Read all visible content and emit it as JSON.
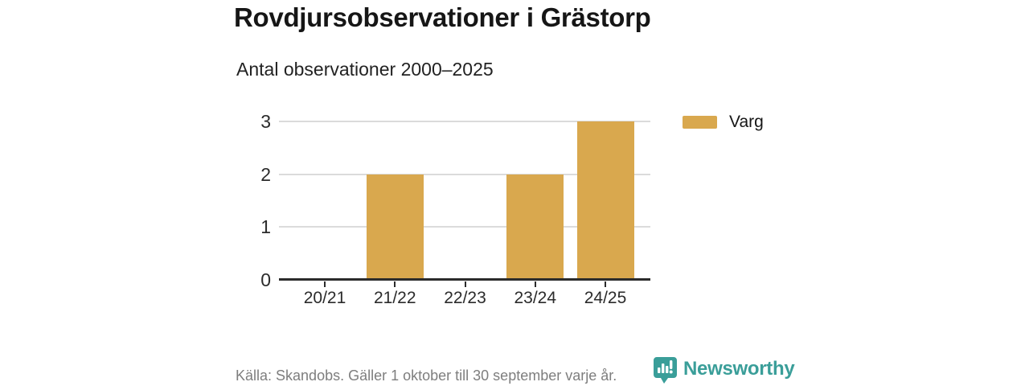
{
  "header": {
    "title": "Rovdjursobservationer i Grästorp",
    "subtitle": "Antal observationer 2000–2025"
  },
  "chart_data": {
    "type": "bar",
    "categories": [
      "20/21",
      "21/22",
      "22/23",
      "23/24",
      "24/25"
    ],
    "series": [
      {
        "name": "Varg",
        "values": [
          0,
          2,
          0,
          2,
          3
        ]
      }
    ],
    "title": "Rovdjursobservationer i Grästorp",
    "subtitle": "Antal observationer 2000–2025",
    "xlabel": "",
    "ylabel": "",
    "ylim": [
      0,
      3
    ],
    "yticks": [
      0,
      1,
      2,
      3
    ],
    "grid": "horizontal",
    "legend_position": "right",
    "bar_color": "#d9a84e"
  },
  "legend": {
    "items": [
      {
        "label": "Varg",
        "color": "#d9a84e"
      }
    ]
  },
  "footer": {
    "source": "Källa: Skandobs. Gäller 1 oktober till 30 september varje år.",
    "brand": "Newsworthy"
  },
  "colors": {
    "bar_gold": "#d9a84e",
    "brand_teal": "#3a9e99",
    "axis_dark": "#2b2b2b",
    "gridline": "#dbdbdb",
    "text_dark": "#161616",
    "text_gray": "#7e7e7e"
  }
}
